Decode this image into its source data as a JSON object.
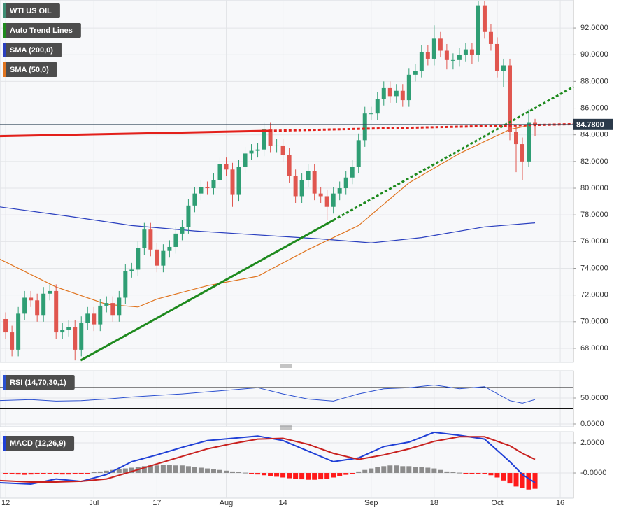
{
  "chart_data": [
    {
      "type": "candlestick",
      "name": "WTI US OIL",
      "legend_color": "#3d8c73",
      "up_color": "#2f9e74",
      "down_color": "#e0564f",
      "open": [
        70.2,
        69.2,
        67.9,
        70.6,
        71.8,
        71.6,
        70.5,
        72.1,
        72.3,
        69.2,
        69.4,
        69.6,
        67.9,
        69.9,
        70.6,
        69.8,
        71.2,
        71.4,
        70.5,
        71.8,
        73.8,
        73.9,
        75.5,
        76.9,
        75.4,
        74.2,
        75.3,
        75.6,
        76.6,
        77.1,
        78.7,
        79.6,
        80.1,
        80.0,
        80.6,
        81.8,
        81.4,
        79.5,
        81.6,
        82.6,
        82.8,
        82.9,
        84.4,
        83.2,
        83.2,
        82.5,
        80.9,
        79.4,
        80.6,
        81.3,
        79.6,
        79.4,
        78.6,
        79.6,
        80.0,
        80.8,
        81.6,
        83.6,
        85.6,
        85.6,
        86.7,
        87.5,
        86.9,
        87.3,
        86.6,
        88.5,
        88.8,
        90.2,
        89.7,
        91.2,
        90.3,
        89.6,
        89.6,
        90.0,
        90.4,
        90.0,
        93.7,
        91.7,
        90.8,
        88.8,
        89.2,
        84.2,
        83.3,
        82.0,
        84.9
      ],
      "high": [
        70.7,
        69.7,
        71.1,
        72.3,
        72.3,
        72.1,
        72.6,
        72.8,
        72.8,
        69.9,
        70.1,
        70.1,
        70.4,
        71.1,
        71.1,
        71.7,
        71.9,
        71.9,
        72.3,
        74.3,
        74.4,
        76.0,
        77.4,
        77.4,
        75.9,
        75.8,
        76.1,
        77.1,
        77.6,
        79.2,
        80.1,
        80.6,
        80.5,
        81.1,
        82.3,
        82.3,
        81.9,
        82.1,
        83.1,
        83.3,
        83.4,
        84.9,
        84.9,
        83.7,
        83.7,
        83.0,
        81.4,
        81.1,
        81.8,
        81.8,
        80.1,
        79.9,
        80.1,
        80.5,
        81.3,
        82.1,
        84.1,
        86.1,
        86.1,
        87.2,
        88.0,
        88.0,
        87.8,
        87.8,
        89.0,
        89.3,
        90.7,
        90.7,
        92.2,
        91.7,
        90.8,
        90.1,
        90.5,
        90.9,
        90.9,
        94.0,
        94.0,
        92.3,
        91.3,
        89.7,
        89.7,
        84.7,
        83.8,
        85.9,
        85.2
      ],
      "low": [
        68.7,
        67.4,
        67.4,
        70.1,
        71.1,
        70.0,
        70.0,
        71.6,
        68.7,
        68.7,
        68.9,
        67.1,
        67.4,
        69.4,
        69.3,
        69.3,
        70.7,
        70.0,
        70.0,
        71.3,
        73.3,
        73.4,
        75.0,
        74.9,
        73.7,
        73.7,
        74.8,
        75.1,
        76.1,
        76.6,
        78.2,
        79.1,
        79.5,
        79.5,
        80.1,
        80.9,
        78.6,
        79.0,
        81.1,
        82.1,
        82.3,
        82.4,
        82.7,
        82.7,
        82.0,
        80.4,
        78.9,
        78.9,
        80.1,
        79.1,
        78.9,
        77.6,
        78.1,
        79.1,
        79.5,
        80.3,
        81.1,
        83.1,
        85.1,
        85.1,
        86.2,
        86.4,
        86.4,
        86.1,
        86.1,
        88.0,
        88.3,
        89.2,
        89.2,
        89.8,
        88.9,
        88.9,
        89.1,
        89.5,
        89.3,
        89.5,
        91.2,
        90.3,
        88.3,
        87.6,
        83.6,
        81.2,
        80.6,
        81.6,
        83.9
      ],
      "close": [
        69.2,
        67.9,
        70.6,
        71.8,
        71.6,
        70.5,
        72.1,
        72.3,
        69.2,
        69.4,
        69.6,
        67.9,
        69.9,
        70.6,
        69.8,
        71.2,
        71.4,
        70.5,
        71.8,
        73.8,
        73.9,
        75.5,
        76.9,
        75.4,
        74.2,
        75.3,
        75.6,
        76.6,
        77.1,
        78.7,
        79.6,
        80.1,
        80.0,
        80.6,
        81.8,
        81.4,
        79.5,
        81.6,
        82.6,
        82.8,
        82.9,
        84.4,
        83.2,
        83.2,
        82.5,
        80.9,
        79.4,
        80.6,
        81.3,
        79.6,
        79.4,
        78.6,
        79.6,
        80.0,
        80.8,
        81.6,
        83.6,
        85.6,
        85.6,
        86.7,
        87.5,
        86.9,
        87.3,
        86.6,
        88.5,
        88.8,
        90.2,
        89.7,
        91.2,
        90.3,
        89.6,
        89.6,
        90.0,
        90.4,
        90.0,
        93.7,
        91.7,
        90.8,
        88.8,
        89.2,
        84.2,
        83.3,
        82.0,
        84.9,
        84.78
      ],
      "trend_lines": {
        "name": "Auto Trend Lines",
        "color": "#1e8a1e",
        "lines": [
          {
            "color": "#1e8a1e",
            "style": "solid",
            "x": [
              11.9,
              52
            ],
            "y": [
              67.1,
              77.6
            ]
          },
          {
            "color": "#1e8a1e",
            "style": "dotted",
            "x": [
              52,
              90.1
            ],
            "y": [
              77.6,
              87.6
            ]
          },
          {
            "color": "#e3201b",
            "style": "solid",
            "x": [
              -0.9,
              41.8
            ],
            "y": [
              83.9,
              84.3
            ]
          },
          {
            "color": "#e3201b",
            "style": "dotted",
            "x": [
              41.8,
              90.1
            ],
            "y": [
              84.3,
              84.8
            ]
          }
        ]
      },
      "lines": [
        {
          "name": "SMA (200,0)",
          "color": "#2a3fbf",
          "x": [
            -1,
            10,
            20,
            30,
            40,
            50,
            58,
            66,
            76,
            84
          ],
          "values": [
            78.6,
            77.9,
            77.2,
            76.8,
            76.5,
            76.2,
            75.9,
            76.3,
            77.1,
            77.4
          ]
        },
        {
          "name": "SMA (50,0)",
          "color": "#e0741f",
          "x": [
            -1,
            8,
            16,
            21,
            24,
            32,
            40,
            48,
            56,
            64,
            72,
            80,
            84
          ],
          "values": [
            74.7,
            72.6,
            71.3,
            71.1,
            71.7,
            72.7,
            73.4,
            75.4,
            77.2,
            80.4,
            82.6,
            84.4,
            84.8
          ]
        }
      ],
      "last_price": {
        "value": 84.78,
        "label": "84.7800"
      },
      "xlim": [
        -0.9,
        90.1
      ],
      "ylim": [
        66.95,
        94.1
      ],
      "yticks": [
        {
          "value": 68,
          "label": "68.0000"
        },
        {
          "value": 70,
          "label": "70.0000"
        },
        {
          "value": 72,
          "label": "72.0000"
        },
        {
          "value": 74,
          "label": "74.0000"
        },
        {
          "value": 76,
          "label": "76.0000"
        },
        {
          "value": 78,
          "label": "78.0000"
        },
        {
          "value": 80,
          "label": "80.0000"
        },
        {
          "value": 82,
          "label": "82.0000"
        },
        {
          "value": 84,
          "label": "84.0000"
        },
        {
          "value": 86,
          "label": "86.0000"
        },
        {
          "value": 88,
          "label": "88.0000"
        },
        {
          "value": 90,
          "label": "90.0000"
        },
        {
          "value": 92,
          "label": "92.0000"
        }
      ],
      "grid": true
    },
    {
      "type": "line",
      "title": "RSI (14,70,30,1)",
      "series": [
        {
          "color": "#2a4fd0",
          "x": [
            -1,
            4,
            8,
            12,
            16,
            20,
            24,
            28,
            32,
            36,
            40,
            44,
            48,
            52,
            56,
            60,
            64,
            68,
            72,
            76,
            80,
            82,
            84
          ],
          "values": [
            45,
            47,
            44,
            45,
            48,
            52,
            55,
            58,
            62,
            66,
            70,
            58,
            48,
            44,
            58,
            68,
            70,
            75,
            68,
            72,
            45,
            40,
            47
          ]
        }
      ],
      "levels": [
        70,
        30
      ],
      "xlim": [
        -0.9,
        90.1
      ],
      "ylim": [
        -5.4,
        102.7
      ],
      "yticks": [
        {
          "value": 50,
          "label": "50.0000"
        },
        {
          "value": 0,
          "label": "0.0000"
        }
      ],
      "grid": true
    },
    {
      "type": "macd",
      "title": "MACD (12,26,9)",
      "series": [
        {
          "color": "#1f3fd6",
          "x": [
            -1,
            4,
            8,
            12,
            16,
            20,
            24,
            28,
            32,
            36,
            40,
            44,
            48,
            52,
            56,
            60,
            64,
            68,
            72,
            76,
            80,
            82,
            84
          ],
          "values": [
            -0.65,
            -0.74,
            -0.4,
            -0.56,
            -0.1,
            0.75,
            1.2,
            1.7,
            2.15,
            2.3,
            2.45,
            2.15,
            1.45,
            0.75,
            1.0,
            1.75,
            2.05,
            2.7,
            2.5,
            2.25,
            0.75,
            -0.1,
            -0.65
          ]
        },
        {
          "color": "#c8201e",
          "x": [
            -1,
            4,
            8,
            12,
            16,
            20,
            24,
            28,
            32,
            36,
            40,
            44,
            48,
            52,
            56,
            60,
            64,
            68,
            72,
            76,
            80,
            82,
            84
          ],
          "values": [
            -0.5,
            -0.6,
            -0.6,
            -0.55,
            -0.4,
            0.1,
            0.6,
            1.1,
            1.6,
            1.95,
            2.25,
            2.3,
            1.9,
            1.3,
            0.9,
            1.2,
            1.6,
            2.1,
            2.4,
            2.4,
            1.8,
            1.3,
            0.9
          ]
        }
      ],
      "histogram": {
        "up_color": "#8c8c8c",
        "down_color": "#ff1a1a",
        "values": [
          -0.05,
          -0.08,
          -0.1,
          -0.12,
          -0.1,
          -0.08,
          -0.05,
          -0.05,
          -0.08,
          -0.1,
          -0.1,
          -0.08,
          -0.05,
          -0.02,
          0.05,
          0.1,
          0.15,
          0.2,
          0.25,
          0.3,
          0.35,
          0.4,
          0.45,
          0.5,
          0.5,
          0.55,
          0.55,
          0.5,
          0.5,
          0.45,
          0.4,
          0.35,
          0.3,
          0.25,
          0.2,
          0.15,
          0.1,
          0.05,
          0.02,
          -0.05,
          -0.1,
          -0.15,
          -0.2,
          -0.25,
          -0.3,
          -0.35,
          -0.4,
          -0.42,
          -0.45,
          -0.45,
          -0.42,
          -0.38,
          -0.3,
          -0.22,
          -0.12,
          -0.05,
          0.1,
          0.2,
          0.3,
          0.4,
          0.45,
          0.5,
          0.5,
          0.45,
          0.45,
          0.4,
          0.4,
          0.35,
          0.3,
          0.2,
          0.1,
          0.05,
          0.02,
          -0.02,
          -0.05,
          -0.05,
          -0.08,
          -0.15,
          -0.3,
          -0.5,
          -0.7,
          -0.9,
          -1.0,
          -1.1,
          -1.05
        ]
      },
      "xlim": [
        -0.9,
        90.1
      ],
      "ylim": [
        -1.67,
        2.74
      ],
      "yticks": [
        {
          "value": 2,
          "label": "2.0000"
        },
        {
          "value": 0,
          "label": "-0.0000"
        }
      ],
      "xticks": [
        {
          "value": 0,
          "label": "12"
        },
        {
          "value": 14,
          "label": "Jul"
        },
        {
          "value": 24,
          "label": "17"
        },
        {
          "value": 35,
          "label": "Aug"
        },
        {
          "value": 44,
          "label": "14"
        },
        {
          "value": 58,
          "label": "Sep"
        },
        {
          "value": 68,
          "label": "18"
        },
        {
          "value": 78,
          "label": "Oct"
        },
        {
          "value": 88,
          "label": "16"
        }
      ],
      "grid": true
    }
  ]
}
